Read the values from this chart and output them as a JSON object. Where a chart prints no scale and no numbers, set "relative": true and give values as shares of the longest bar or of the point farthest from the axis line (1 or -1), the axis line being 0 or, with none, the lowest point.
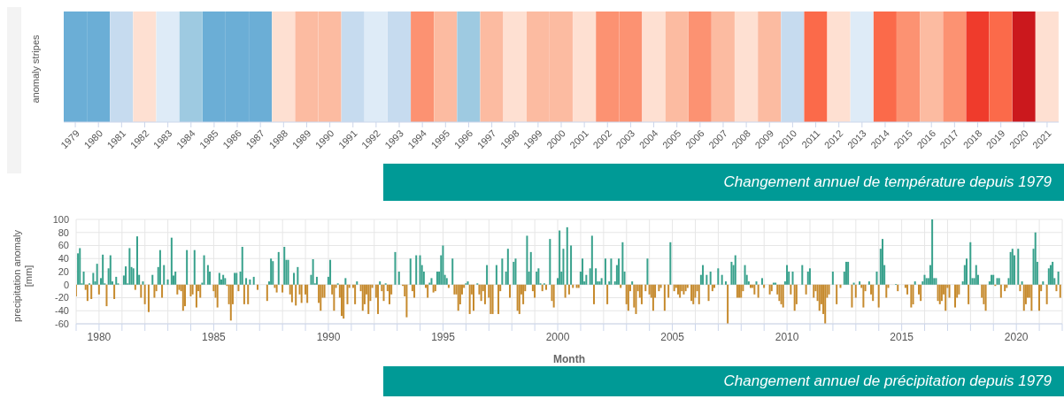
{
  "chart_data": [
    {
      "type": "bar",
      "relative": true,
      "ylabel": "anomaly stripes",
      "values": [
        1,
        1,
        1,
        1,
        1,
        1,
        1,
        1,
        1,
        1,
        1,
        1,
        1,
        1,
        1,
        1,
        1,
        1,
        1,
        1,
        1,
        1,
        1,
        1,
        1,
        1,
        1,
        1,
        1,
        1,
        1,
        1,
        1,
        1,
        1,
        1,
        1,
        1,
        1,
        1,
        1,
        1,
        1
      ],
      "categories": [
        "1979",
        "1980",
        "1981",
        "1982",
        "1983",
        "1984",
        "1985",
        "1986",
        "1987",
        "1988",
        "1989",
        "1990",
        "1991",
        "1992",
        "1993",
        "1994",
        "1995",
        "1996",
        "1997",
        "1998",
        "1999",
        "2000",
        "2001",
        "2002",
        "2003",
        "2004",
        "2005",
        "2006",
        "2007",
        "2008",
        "2009",
        "2010",
        "2011",
        "2012",
        "2013",
        "2014",
        "2015",
        "2016",
        "2017",
        "2018",
        "2019",
        "2020",
        "2021"
      ],
      "colors": [
        "#6baed6",
        "#6baed6",
        "#c6dbef",
        "#fee0d2",
        "#deebf7",
        "#9ecae1",
        "#6baed6",
        "#6baed6",
        "#6baed6",
        "#fee0d2",
        "#fcbba1",
        "#fcbba1",
        "#c6dbef",
        "#deebf7",
        "#c6dbef",
        "#fc9272",
        "#fcbba1",
        "#9ecae1",
        "#fcbba1",
        "#fee0d2",
        "#fcbba1",
        "#fcbba1",
        "#fee0d2",
        "#fc9272",
        "#fc9272",
        "#fee0d2",
        "#fcbba1",
        "#fc9272",
        "#fcbba1",
        "#fee0d2",
        "#fcbba1",
        "#c6dbef",
        "#fb6a4a",
        "#fee0d2",
        "#deebf7",
        "#fb6a4a",
        "#fc9272",
        "#fcbba1",
        "#fc9272",
        "#ef3b2c",
        "#fb6a4a",
        "#cb181d",
        "#fee0d2"
      ],
      "annotations": [
        "Changement annuel de température depuis 1979"
      ]
    },
    {
      "type": "bar",
      "ylabel": "precipitation anomaly [mm]",
      "xlabel": "Month",
      "grid": true,
      "legend": false,
      "ylim": [
        -60,
        100
      ],
      "yticks": [
        -60,
        -40,
        -20,
        0,
        20,
        40,
        60,
        80,
        100
      ],
      "xlim": [
        "1979-01",
        "2022-01"
      ],
      "xticks": [
        {
          "value": "1979",
          "label": null
        },
        "1980",
        {
          "value": "1981",
          "label": null
        },
        {
          "value": "1982",
          "label": null
        },
        {
          "value": "1983",
          "label": null
        },
        {
          "value": "1984",
          "label": null
        },
        "1985",
        {
          "value": "1986",
          "label": null
        },
        {
          "value": "1987",
          "label": null
        },
        {
          "value": "1988",
          "label": null
        },
        {
          "value": "1989",
          "label": null
        },
        "1990",
        {
          "value": "1991",
          "label": null
        },
        {
          "value": "1992",
          "label": null
        },
        {
          "value": "1993",
          "label": null
        },
        {
          "value": "1994",
          "label": null
        },
        "1995",
        {
          "value": "1996",
          "label": null
        },
        {
          "value": "1997",
          "label": null
        },
        {
          "value": "1998",
          "label": null
        },
        {
          "value": "1999",
          "label": null
        },
        "2000",
        {
          "value": "2001",
          "label": null
        },
        {
          "value": "2002",
          "label": null
        },
        {
          "value": "2003",
          "label": null
        },
        {
          "value": "2004",
          "label": null
        },
        "2005",
        {
          "value": "2006",
          "label": null
        },
        {
          "value": "2007",
          "label": null
        },
        {
          "value": "2008",
          "label": null
        },
        {
          "value": "2009",
          "label": null
        },
        "2010",
        {
          "value": "2011",
          "label": null
        },
        {
          "value": "2012",
          "label": null
        },
        {
          "value": "2013",
          "label": null
        },
        {
          "value": "2014",
          "label": null
        },
        "2015",
        {
          "value": "2016",
          "label": null
        },
        {
          "value": "2017",
          "label": null
        },
        {
          "value": "2018",
          "label": null
        },
        {
          "value": "2019",
          "label": null
        },
        "2020",
        {
          "value": "2021",
          "label": null
        },
        {
          "value": "2022",
          "label": null
        }
      ],
      "x": [
        "1979-01",
        "1979-02",
        "1979-03",
        "1979-04",
        "1979-05",
        "1979-06",
        "1979-07",
        "1979-08",
        "1979-09",
        "1979-10",
        "1979-11",
        "1979-12",
        "1980-01",
        "1980-02",
        "1980-03",
        "1980-04",
        "1980-05",
        "1980-06",
        "1980-07",
        "1980-08",
        "1980-09",
        "1980-10",
        "1980-11",
        "1980-12",
        "1981-01",
        "1981-02",
        "1981-03",
        "1981-04",
        "1981-05",
        "1981-06",
        "1981-07",
        "1981-08",
        "1981-09",
        "1981-10",
        "1981-11",
        "1981-12",
        "1982-01",
        "1982-02",
        "1982-03",
        "1982-04",
        "1982-05",
        "1982-06",
        "1982-07",
        "1982-08",
        "1982-09",
        "1982-10",
        "1982-11",
        "1982-12",
        "1983-01",
        "1983-02",
        "1983-03",
        "1983-04",
        "1983-05",
        "1983-06",
        "1983-07",
        "1983-08",
        "1983-09",
        "1983-10",
        "1983-11",
        "1983-12",
        "1984-01",
        "1984-02",
        "1984-03",
        "1984-04",
        "1984-05",
        "1984-06",
        "1984-07",
        "1984-08",
        "1984-09",
        "1984-10",
        "1984-11",
        "1984-12",
        "1985-01",
        "1985-02",
        "1985-03",
        "1985-04",
        "1985-05",
        "1985-06",
        "1985-07",
        "1985-08",
        "1985-09",
        "1985-10",
        "1985-11",
        "1985-12",
        "1986-01",
        "1986-02",
        "1986-03",
        "1986-04",
        "1986-05",
        "1986-06",
        "1986-07",
        "1986-08",
        "1986-09",
        "1986-10",
        "1986-11",
        "1986-12",
        "1987-01",
        "1987-02",
        "1987-03",
        "1987-04",
        "1987-05",
        "1987-06",
        "1987-07",
        "1987-08",
        "1987-09",
        "1987-10",
        "1987-11",
        "1987-12",
        "1988-01",
        "1988-02",
        "1988-03",
        "1988-04",
        "1988-05",
        "1988-06",
        "1988-07",
        "1988-08",
        "1988-09",
        "1988-10",
        "1988-11",
        "1988-12",
        "1989-01",
        "1989-02",
        "1989-03",
        "1989-04",
        "1989-05",
        "1989-06",
        "1989-07",
        "1989-08",
        "1989-09",
        "1989-10",
        "1989-11",
        "1989-12",
        "1990-01",
        "1990-02",
        "1990-03",
        "1990-04",
        "1990-05",
        "1990-06",
        "1990-07",
        "1990-08",
        "1990-09",
        "1990-10",
        "1990-11",
        "1990-12",
        "1991-01",
        "1991-02",
        "1991-03",
        "1991-04",
        "1991-05",
        "1991-06",
        "1991-07",
        "1991-08",
        "1991-09",
        "1991-10",
        "1991-11",
        "1991-12",
        "1992-01",
        "1992-02",
        "1992-03",
        "1992-04",
        "1992-05",
        "1992-06",
        "1992-07",
        "1992-08",
        "1992-09",
        "1992-10",
        "1992-11",
        "1992-12",
        "1993-01",
        "1993-02",
        "1993-03",
        "1993-04",
        "1993-05",
        "1993-06",
        "1993-07",
        "1993-08",
        "1993-09",
        "1993-10",
        "1993-11",
        "1993-12",
        "1994-01",
        "1994-02",
        "1994-03",
        "1994-04",
        "1994-05",
        "1994-06",
        "1994-07",
        "1994-08",
        "1994-09",
        "1994-10",
        "1994-11",
        "1994-12",
        "1995-01",
        "1995-02",
        "1995-03",
        "1995-04",
        "1995-05",
        "1995-06",
        "1995-07",
        "1995-08",
        "1995-09",
        "1995-10",
        "1995-11",
        "1995-12",
        "1996-01",
        "1996-02",
        "1996-03",
        "1996-04",
        "1996-05",
        "1996-06",
        "1996-07",
        "1996-08",
        "1996-09",
        "1996-10",
        "1996-11",
        "1996-12",
        "1997-01",
        "1997-02",
        "1997-03",
        "1997-04",
        "1997-05",
        "1997-06",
        "1997-07",
        "1997-08",
        "1997-09",
        "1997-10",
        "1997-11",
        "1997-12",
        "1998-01",
        "1998-02",
        "1998-03",
        "1998-04",
        "1998-05",
        "1998-06",
        "1998-07",
        "1998-08",
        "1998-09",
        "1998-10",
        "1998-11",
        "1998-12",
        "1999-01",
        "1999-02",
        "1999-03",
        "1999-04",
        "1999-05",
        "1999-06",
        "1999-07",
        "1999-08",
        "1999-09",
        "1999-10",
        "1999-11",
        "1999-12",
        "2000-01",
        "2000-02",
        "2000-03",
        "2000-04",
        "2000-05",
        "2000-06",
        "2000-07",
        "2000-08",
        "2000-09",
        "2000-10",
        "2000-11",
        "2000-12",
        "2001-01",
        "2001-02",
        "2001-03",
        "2001-04",
        "2001-05",
        "2001-06",
        "2001-07",
        "2001-08",
        "2001-09",
        "2001-10",
        "2001-11",
        "2001-12",
        "2002-01",
        "2002-02",
        "2002-03",
        "2002-04",
        "2002-05",
        "2002-06",
        "2002-07",
        "2002-08",
        "2002-09",
        "2002-10",
        "2002-11",
        "2002-12",
        "2003-01",
        "2003-02",
        "2003-03",
        "2003-04",
        "2003-05",
        "2003-06",
        "2003-07",
        "2003-08",
        "2003-09",
        "2003-10",
        "2003-11",
        "2003-12",
        "2004-01",
        "2004-02",
        "2004-03",
        "2004-04",
        "2004-05",
        "2004-06",
        "2004-07",
        "2004-08",
        "2004-09",
        "2004-10",
        "2004-11",
        "2004-12",
        "2005-01",
        "2005-02",
        "2005-03",
        "2005-04",
        "2005-05",
        "2005-06",
        "2005-07",
        "2005-08",
        "2005-09",
        "2005-10",
        "2005-11",
        "2005-12",
        "2006-01",
        "2006-02",
        "2006-03",
        "2006-04",
        "2006-05",
        "2006-06",
        "2006-07",
        "2006-08",
        "2006-09",
        "2006-10",
        "2006-11",
        "2006-12",
        "2007-01",
        "2007-02",
        "2007-03",
        "2007-04",
        "2007-05",
        "2007-06",
        "2007-07",
        "2007-08",
        "2007-09",
        "2007-10",
        "2007-11",
        "2007-12",
        "2008-01",
        "2008-02",
        "2008-03",
        "2008-04",
        "2008-05",
        "2008-06",
        "2008-07",
        "2008-08",
        "2008-09",
        "2008-10",
        "2008-11",
        "2008-12",
        "2009-01",
        "2009-02",
        "2009-03",
        "2009-04",
        "2009-05",
        "2009-06",
        "2009-07",
        "2009-08",
        "2009-09",
        "2009-10",
        "2009-11",
        "2009-12",
        "2010-01",
        "2010-02",
        "2010-03",
        "2010-04",
        "2010-05",
        "2010-06",
        "2010-07",
        "2010-08",
        "2010-09",
        "2010-10",
        "2010-11",
        "2010-12",
        "2011-01",
        "2011-02",
        "2011-03",
        "2011-04",
        "2011-05",
        "2011-06",
        "2011-07",
        "2011-08",
        "2011-09",
        "2011-10",
        "2011-11",
        "2011-12",
        "2012-01",
        "2012-02",
        "2012-03",
        "2012-04",
        "2012-05",
        "2012-06",
        "2012-07",
        "2012-08",
        "2012-09",
        "2012-10",
        "2012-11",
        "2012-12",
        "2013-01",
        "2013-02",
        "2013-03",
        "2013-04",
        "2013-05",
        "2013-06",
        "2013-07",
        "2013-08",
        "2013-09",
        "2013-10",
        "2013-11",
        "2013-12",
        "2014-01",
        "2014-02",
        "2014-03",
        "2014-04",
        "2014-05",
        "2014-06",
        "2014-07",
        "2014-08",
        "2014-09",
        "2014-10",
        "2014-11",
        "2014-12",
        "2015-01",
        "2015-02",
        "2015-03",
        "2015-04",
        "2015-05",
        "2015-06",
        "2015-07",
        "2015-08",
        "2015-09",
        "2015-10",
        "2015-11",
        "2015-12",
        "2016-01",
        "2016-02",
        "2016-03",
        "2016-04",
        "2016-05",
        "2016-06",
        "2016-07",
        "2016-08",
        "2016-09",
        "2016-10",
        "2016-11",
        "2016-12",
        "2017-01",
        "2017-02",
        "2017-03",
        "2017-04",
        "2017-05",
        "2017-06",
        "2017-07",
        "2017-08",
        "2017-09",
        "2017-10",
        "2017-11",
        "2017-12",
        "2018-01",
        "2018-02",
        "2018-03",
        "2018-04",
        "2018-05",
        "2018-06",
        "2018-07",
        "2018-08",
        "2018-09",
        "2018-10",
        "2018-11",
        "2018-12",
        "2019-01",
        "2019-02",
        "2019-03",
        "2019-04",
        "2019-05",
        "2019-06",
        "2019-07",
        "2019-08",
        "2019-09",
        "2019-10",
        "2019-11",
        "2019-12",
        "2020-01",
        "2020-02",
        "2020-03",
        "2020-04",
        "2020-05",
        "2020-06",
        "2020-07",
        "2020-08",
        "2020-09",
        "2020-10",
        "2020-11",
        "2020-12",
        "2021-01",
        "2021-02",
        "2021-03",
        "2021-04",
        "2021-05",
        "2021-06",
        "2021-07",
        "2021-08",
        "2021-09",
        "2021-10",
        "2021-11",
        "2021-12"
      ],
      "series": [
        {
          "color": "#38a18c",
          "values": [
            null,
            48,
            56,
            2,
            20,
            null,
            null,
            2,
            null,
            18,
            5,
            32,
            null,
            10,
            46,
            2,
            null,
            25,
            45,
            5,
            null,
            12,
            2,
            0,
            0,
            14,
            28,
            2,
            56,
            27,
            25,
            null,
            74,
            15,
            null,
            5,
            null,
            0,
            null,
            0,
            15,
            null,
            null,
            27,
            53,
            null,
            30,
            0,
            8,
            0,
            72,
            14,
            20,
            null,
            null,
            null,
            null,
            null,
            53,
            0,
            null,
            null,
            53,
            null,
            null,
            null,
            3,
            45,
            0,
            30,
            20,
            0,
            null,
            null,
            null,
            18,
            8,
            15,
            10,
            null,
            null,
            null,
            null,
            18,
            18,
            null,
            20,
            58,
            null,
            10,
            null,
            8,
            0,
            12,
            0,
            null,
            0,
            0,
            0,
            0,
            null,
            5,
            40,
            36,
            null,
            null,
            50,
            0,
            null,
            58,
            38,
            38,
            null,
            null,
            18,
            null,
            27,
            null,
            null,
            0,
            null,
            null,
            0,
            15,
            39,
            2,
            12,
            null,
            null,
            null,
            null,
            0,
            12,
            38,
            null,
            null,
            null,
            2,
            null,
            null,
            null,
            10,
            null,
            null,
            0,
            null,
            null,
            5,
            0,
            null,
            null,
            null,
            null,
            null,
            null,
            null,
            0,
            null,
            null,
            5,
            null,
            null,
            2,
            null,
            null,
            null,
            0,
            50,
            0,
            20,
            0,
            null,
            null,
            null,
            0,
            40,
            null,
            null,
            45,
            0,
            45,
            30,
            20,
            null,
            null,
            3,
            10,
            null,
            null,
            20,
            20,
            45,
            60,
            15,
            10,
            null,
            0,
            40,
            null,
            null,
            null,
            null,
            null,
            null,
            2,
            5,
            null,
            null,
            null,
            0,
            2,
            null,
            null,
            null,
            null,
            30,
            null,
            null,
            null,
            0,
            30,
            null,
            null,
            40,
            0,
            20,
            55,
            null,
            0,
            35,
            40,
            null,
            null,
            null,
            null,
            null,
            75,
            20,
            50,
            null,
            null,
            20,
            25,
            2,
            null,
            2,
            null,
            0,
            70,
            null,
            null,
            0,
            10,
            83,
            20,
            55,
            null,
            88,
            null,
            60,
            null,
            0,
            null,
            null,
            20,
            40,
            5,
            15,
            0,
            25,
            75,
            null,
            25,
            5,
            5,
            10,
            0,
            40,
            null,
            5,
            40,
            0,
            5,
            30,
            40,
            null,
            65,
            20,
            null,
            null,
            null,
            5,
            null,
            null,
            null,
            null,
            null,
            0,
            null,
            40,
            null,
            null,
            null,
            null,
            0,
            null,
            null,
            0,
            null,
            0,
            null,
            65,
            0,
            null,
            null,
            null,
            null,
            null,
            null,
            null,
            null,
            0,
            null,
            null,
            null,
            null,
            null,
            15,
            30,
            0,
            15,
            null,
            20,
            null,
            null,
            0,
            25,
            0,
            15,
            0,
            5,
            null,
            0,
            35,
            30,
            45,
            null,
            null,
            null,
            null,
            30,
            15,
            5,
            null,
            null,
            null,
            5,
            null,
            0,
            10,
            null,
            0,
            0,
            null,
            null,
            3,
            3,
            null,
            null,
            null,
            null,
            5,
            30,
            20,
            null,
            20,
            null,
            null,
            0,
            0,
            30,
            0,
            null,
            20,
            25,
            0,
            null,
            null,
            null,
            null,
            null,
            null,
            null,
            null,
            null,
            0,
            20,
            0,
            null,
            0,
            null,
            0,
            20,
            35,
            35,
            0,
            null,
            3,
            null,
            0,
            5,
            null,
            null,
            null,
            0,
            5,
            null,
            null,
            0,
            20,
            null,
            55,
            70,
            30,
            null,
            null,
            0,
            0,
            0,
            1,
            null,
            0,
            0,
            0,
            null,
            null,
            0,
            null,
            null,
            5,
            0,
            null,
            null,
            5,
            15,
            10,
            10,
            30,
            100,
            10,
            10,
            null,
            null,
            null,
            null,
            null,
            null,
            null,
            0,
            0,
            null,
            null,
            null,
            0,
            5,
            30,
            40,
            null,
            65,
            10,
            10,
            30,
            15,
            0,
            null,
            null,
            null,
            0,
            5,
            15,
            15,
            null,
            10,
            10,
            null,
            0,
            null,
            null,
            10,
            50,
            55,
            45,
            0,
            55,
            null,
            5,
            null,
            null,
            null,
            null,
            null,
            55,
            80,
            35,
            null,
            null,
            5,
            0,
            null,
            25,
            30,
            35,
            10,
            null,
            20,
            null
          ]
        },
        {
          "color": "#c68a2d",
          "values": [
            -18,
            null,
            null,
            null,
            null,
            -8,
            -25,
            null,
            -22,
            null,
            null,
            null,
            -15,
            null,
            null,
            null,
            -33,
            null,
            null,
            null,
            -22,
            null,
            null,
            null,
            null,
            null,
            null,
            null,
            null,
            null,
            null,
            -8,
            null,
            null,
            -20,
            null,
            -30,
            null,
            -42,
            null,
            null,
            -20,
            -10,
            null,
            null,
            -20,
            null,
            null,
            null,
            null,
            null,
            null,
            null,
            -15,
            -8,
            -10,
            -40,
            -33,
            null,
            null,
            -18,
            -15,
            null,
            -35,
            -10,
            -20,
            null,
            null,
            null,
            null,
            null,
            null,
            -10,
            -20,
            -35,
            null,
            null,
            null,
            null,
            -2,
            -30,
            -55,
            -30,
            null,
            null,
            -10,
            null,
            null,
            -30,
            null,
            -30,
            null,
            null,
            null,
            null,
            -8,
            null,
            null,
            null,
            null,
            -25,
            null,
            null,
            null,
            -5,
            -12,
            null,
            null,
            -12,
            null,
            null,
            null,
            -15,
            -27,
            null,
            -32,
            null,
            -15,
            -28,
            null,
            -15,
            -28,
            null,
            null,
            null,
            null,
            null,
            -28,
            -40,
            -20,
            -20,
            null,
            null,
            null,
            -15,
            -40,
            -5,
            null,
            -20,
            -48,
            -52,
            null,
            -30,
            -5,
            null,
            -5,
            -30,
            null,
            null,
            -10,
            -40,
            -30,
            -15,
            -45,
            -25,
            -5,
            null,
            -20,
            -45,
            null,
            -10,
            -25,
            null,
            -10,
            -30,
            -15,
            null,
            null,
            null,
            null,
            null,
            -2,
            -18,
            -50,
            null,
            null,
            -10,
            -20,
            null,
            null,
            null,
            null,
            null,
            -5,
            -20,
            null,
            null,
            -12,
            -10,
            null,
            null,
            null,
            null,
            null,
            null,
            -5,
            null,
            null,
            -15,
            -15,
            -40,
            -30,
            -15,
            -5,
            null,
            null,
            -45,
            -15,
            -40,
            null,
            null,
            -15,
            -25,
            -10,
            -30,
            null,
            -20,
            -45,
            -45,
            null,
            null,
            -45,
            -10,
            null,
            null,
            null,
            null,
            -20,
            null,
            null,
            null,
            -40,
            -45,
            -15,
            -30,
            -10,
            null,
            null,
            null,
            -10,
            -20,
            null,
            null,
            null,
            -10,
            null,
            -8,
            null,
            null,
            -25,
            -35,
            null,
            null,
            null,
            null,
            null,
            -20,
            null,
            -15,
            null,
            -5,
            null,
            -5,
            -5,
            null,
            null,
            null,
            null,
            null,
            null,
            null,
            -30,
            null,
            null,
            null,
            null,
            null,
            null,
            -30,
            null,
            null,
            null,
            null,
            null,
            null,
            -5,
            null,
            null,
            -30,
            -40,
            -10,
            null,
            -35,
            -45,
            -10,
            -20,
            -30,
            null,
            -10,
            null,
            -15,
            -20,
            -40,
            -20,
            null,
            -10,
            -5,
            null,
            -40,
            null,
            -20,
            null,
            null,
            -10,
            -5,
            -15,
            -20,
            -10,
            -15,
            -10,
            -5,
            null,
            -25,
            -30,
            -20,
            -10,
            -30,
            null,
            null,
            null,
            null,
            -25,
            null,
            -10,
            -5,
            null,
            null,
            null,
            null,
            null,
            null,
            -60,
            null,
            null,
            null,
            null,
            -20,
            -20,
            -20,
            -10,
            null,
            null,
            null,
            -5,
            -5,
            -15,
            null,
            -20,
            null,
            null,
            -5,
            null,
            null,
            -15,
            -10,
            null,
            null,
            -15,
            -25,
            -30,
            -35,
            null,
            null,
            null,
            -15,
            null,
            -40,
            -30,
            null,
            null,
            null,
            null,
            -15,
            null,
            null,
            null,
            -20,
            -10,
            -25,
            -40,
            -30,
            -45,
            -60,
            -20,
            -15,
            null,
            null,
            null,
            -30,
            null,
            -5,
            null,
            null,
            null,
            null,
            null,
            -35,
            null,
            -20,
            null,
            null,
            -5,
            -35,
            -10,
            null,
            null,
            -15,
            -25,
            null,
            null,
            -35,
            null,
            null,
            null,
            -20,
            -5,
            null,
            null,
            null,
            null,
            -10,
            null,
            null,
            null,
            -5,
            -15,
            null,
            -35,
            -30,
            null,
            null,
            -15,
            -25,
            null,
            null,
            null,
            null,
            null,
            null,
            null,
            null,
            -25,
            -30,
            -25,
            -15,
            -40,
            -5,
            -20,
            null,
            null,
            -35,
            -20,
            -15,
            null,
            null,
            null,
            null,
            -30,
            null,
            null,
            null,
            null,
            null,
            null,
            -20,
            -30,
            -40,
            null,
            null,
            null,
            null,
            -2,
            null,
            null,
            -20,
            null,
            -10,
            -5,
            null,
            null,
            null,
            null,
            null,
            null,
            -10,
            null,
            -40,
            -30,
            -20,
            -20,
            -40,
            null,
            null,
            null,
            -40,
            -10,
            null,
            null,
            -30,
            null,
            null,
            null,
            null,
            -10,
            null,
            -20
          ]
        }
      ],
      "annotations": [
        "Changement annuel de précipitation depuis 1979"
      ]
    }
  ]
}
